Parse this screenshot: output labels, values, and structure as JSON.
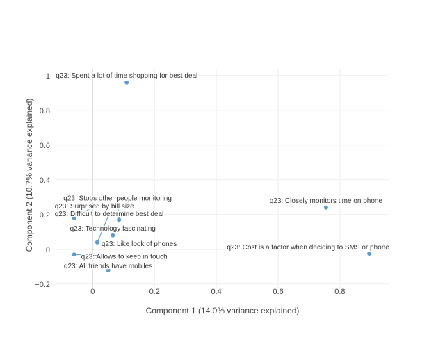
{
  "chart_data": {
    "type": "scatter",
    "title": "",
    "xlabel": "Component 1 (14.0% variance explained)",
    "ylabel": "Component 2 (10.7% variance explained)",
    "xlim": [
      -0.12,
      0.96
    ],
    "ylim": [
      -0.225,
      1.035
    ],
    "x_ticks": [
      0,
      0.2,
      0.4,
      0.6,
      0.8
    ],
    "y_ticks": [
      -0.2,
      0,
      0.2,
      0.4,
      0.6,
      0.8,
      1
    ],
    "x_tick_labels": [
      "0",
      "0.2",
      "0.4",
      "0.6",
      "0.8"
    ],
    "y_tick_labels": [
      "−0.2",
      "0",
      "0.2",
      "0.4",
      "0.6",
      "0.8",
      "1"
    ],
    "grid": true,
    "legend": "none",
    "marker_color": "#5b9bd5",
    "points": [
      {
        "label": "q23: Spent a lot of time shopping for best deal",
        "x": 0.11,
        "y": 0.96
      },
      {
        "label": "q23: Closely monitors time on phone",
        "x": 0.755,
        "y": 0.24
      },
      {
        "label": "q23: Cost is a factor when deciding to SMS or phone",
        "x": 0.895,
        "y": -0.025
      },
      {
        "label": "q23: Stops other people monitoring",
        "x": 0.085,
        "y": 0.17
      },
      {
        "label": "q23: Surprised by bill size",
        "x": -0.06,
        "y": 0.18
      },
      {
        "label": "q23: Difficult to determine best deal",
        "x": 0.015,
        "y": 0.04
      },
      {
        "label": "q23: Technology fascinating",
        "x": 0.065,
        "y": 0.08
      },
      {
        "label": "q23: Like look of phones",
        "x": 0.015,
        "y": 0.04
      },
      {
        "label": "q23: Allows to keep in touch",
        "x": -0.06,
        "y": -0.03
      },
      {
        "label": "q23: All friends have mobiles",
        "x": 0.05,
        "y": -0.12
      }
    ]
  }
}
